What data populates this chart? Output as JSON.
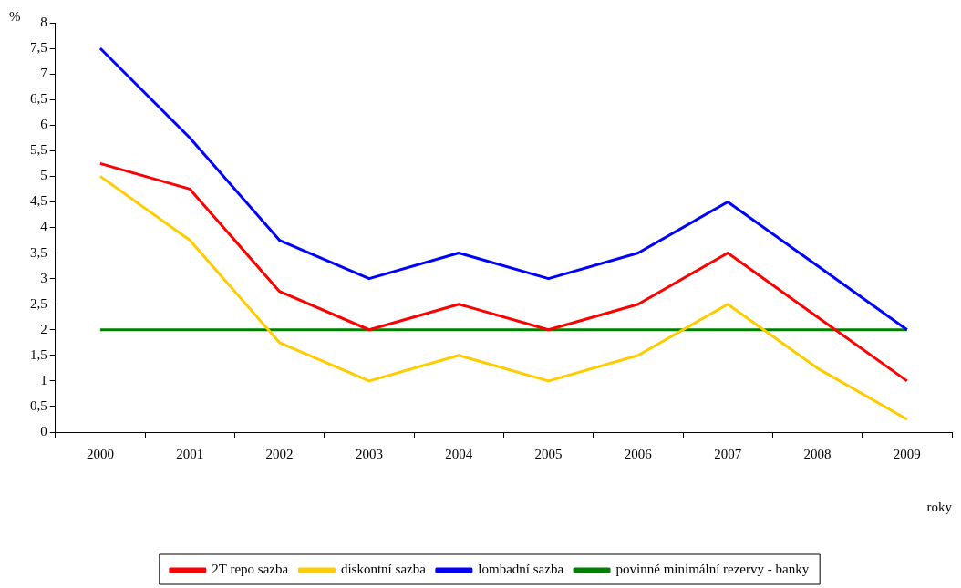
{
  "chart_data": {
    "type": "line",
    "xlabel": "roky",
    "ylabel": "%",
    "categories": [
      "2000",
      "2001",
      "2002",
      "2003",
      "2004",
      "2005",
      "2006",
      "2007",
      "2008",
      "2009"
    ],
    "series": [
      {
        "name": "2T repo sazba",
        "color": "#ff0000",
        "values": [
          5.25,
          4.75,
          2.75,
          2.0,
          2.5,
          2.0,
          2.5,
          3.5,
          2.25,
          1.0
        ]
      },
      {
        "name": "diskontní sazba",
        "color": "#ffcc00",
        "values": [
          5.0,
          3.75,
          1.75,
          1.0,
          1.5,
          1.0,
          1.5,
          2.5,
          1.25,
          0.25
        ]
      },
      {
        "name": "lombadní sazba",
        "color": "#0000ff",
        "values": [
          7.5,
          5.75,
          3.75,
          3.0,
          3.5,
          3.0,
          3.5,
          4.5,
          3.25,
          2.0
        ]
      },
      {
        "name": "povinné minimální rezervy - banky",
        "color": "#008000",
        "values": [
          2,
          2,
          2,
          2,
          2,
          2,
          2,
          2,
          2,
          2
        ]
      }
    ],
    "ylim": [
      0,
      8
    ],
    "yticks": [
      0,
      {
        "value": 0.5,
        "label": "0,5"
      },
      1,
      {
        "value": 1.5,
        "label": "1,5"
      },
      2,
      {
        "value": 2.5,
        "label": "2,5"
      },
      3,
      {
        "value": 3.5,
        "label": "3,5"
      },
      4,
      {
        "value": 4.5,
        "label": "4,5"
      },
      5,
      {
        "value": 5.5,
        "label": "5,5"
      },
      6,
      {
        "value": 6.5,
        "label": "6,5"
      },
      7,
      {
        "value": 7.5,
        "label": "7,5"
      },
      8
    ],
    "grid": false,
    "legend": "bottom",
    "marker": "none",
    "line_style": "solid"
  }
}
